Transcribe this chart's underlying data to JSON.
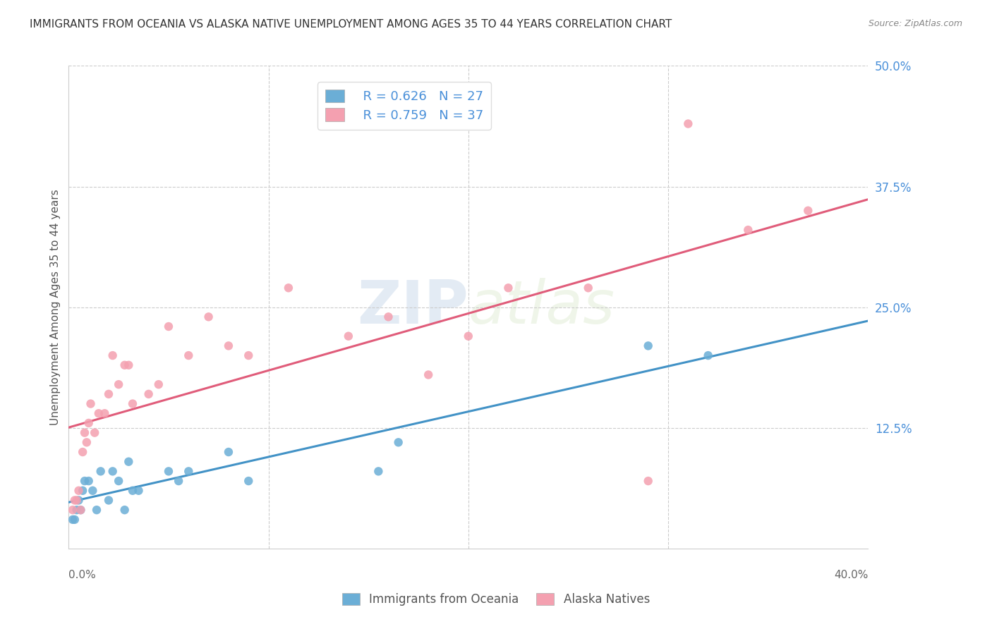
{
  "title": "IMMIGRANTS FROM OCEANIA VS ALASKA NATIVE UNEMPLOYMENT AMONG AGES 35 TO 44 YEARS CORRELATION CHART",
  "source": "Source: ZipAtlas.com",
  "ylabel": "Unemployment Among Ages 35 to 44 years",
  "xlabel_bottom_left": "0.0%",
  "xlabel_bottom_right": "40.0%",
  "xmin": 0.0,
  "xmax": 0.4,
  "ymin": 0.0,
  "ymax": 0.5,
  "yticks": [
    0.0,
    0.125,
    0.25,
    0.375,
    0.5
  ],
  "ytick_labels": [
    "",
    "12.5%",
    "25.0%",
    "37.5%",
    "50.0%"
  ],
  "legend_r1": "R = 0.626",
  "legend_n1": "N = 27",
  "legend_r2": "R = 0.759",
  "legend_n2": "N = 37",
  "color_blue": "#6baed6",
  "color_pink": "#f4a0b0",
  "line_color_blue": "#4292c6",
  "line_color_pink": "#e05c7a",
  "label1": "Immigrants from Oceania",
  "label2": "Alaska Natives",
  "watermark_zip": "ZIP",
  "watermark_atlas": "atlas",
  "scatter_blue_x": [
    0.002,
    0.003,
    0.004,
    0.005,
    0.006,
    0.007,
    0.008,
    0.01,
    0.012,
    0.014,
    0.016,
    0.02,
    0.022,
    0.025,
    0.028,
    0.03,
    0.032,
    0.035,
    0.05,
    0.055,
    0.06,
    0.08,
    0.09,
    0.155,
    0.165,
    0.29,
    0.32
  ],
  "scatter_blue_y": [
    0.03,
    0.03,
    0.04,
    0.05,
    0.04,
    0.06,
    0.07,
    0.07,
    0.06,
    0.04,
    0.08,
    0.05,
    0.08,
    0.07,
    0.04,
    0.09,
    0.06,
    0.06,
    0.08,
    0.07,
    0.08,
    0.1,
    0.07,
    0.08,
    0.11,
    0.21,
    0.2
  ],
  "scatter_pink_x": [
    0.002,
    0.003,
    0.004,
    0.005,
    0.006,
    0.007,
    0.008,
    0.009,
    0.01,
    0.011,
    0.013,
    0.015,
    0.018,
    0.02,
    0.022,
    0.025,
    0.028,
    0.03,
    0.032,
    0.04,
    0.045,
    0.05,
    0.06,
    0.07,
    0.08,
    0.09,
    0.11,
    0.14,
    0.16,
    0.18,
    0.2,
    0.22,
    0.26,
    0.29,
    0.31,
    0.34,
    0.37
  ],
  "scatter_pink_y": [
    0.04,
    0.05,
    0.05,
    0.06,
    0.04,
    0.1,
    0.12,
    0.11,
    0.13,
    0.15,
    0.12,
    0.14,
    0.14,
    0.16,
    0.2,
    0.17,
    0.19,
    0.19,
    0.15,
    0.16,
    0.17,
    0.23,
    0.2,
    0.24,
    0.21,
    0.2,
    0.27,
    0.22,
    0.24,
    0.18,
    0.22,
    0.27,
    0.27,
    0.07,
    0.44,
    0.33,
    0.35
  ],
  "bg_color": "#ffffff",
  "title_fontsize": 11,
  "tick_color": "#4a90d9",
  "ylabel_color": "#555555",
  "source_color": "#888888",
  "grid_color": "#cccccc"
}
